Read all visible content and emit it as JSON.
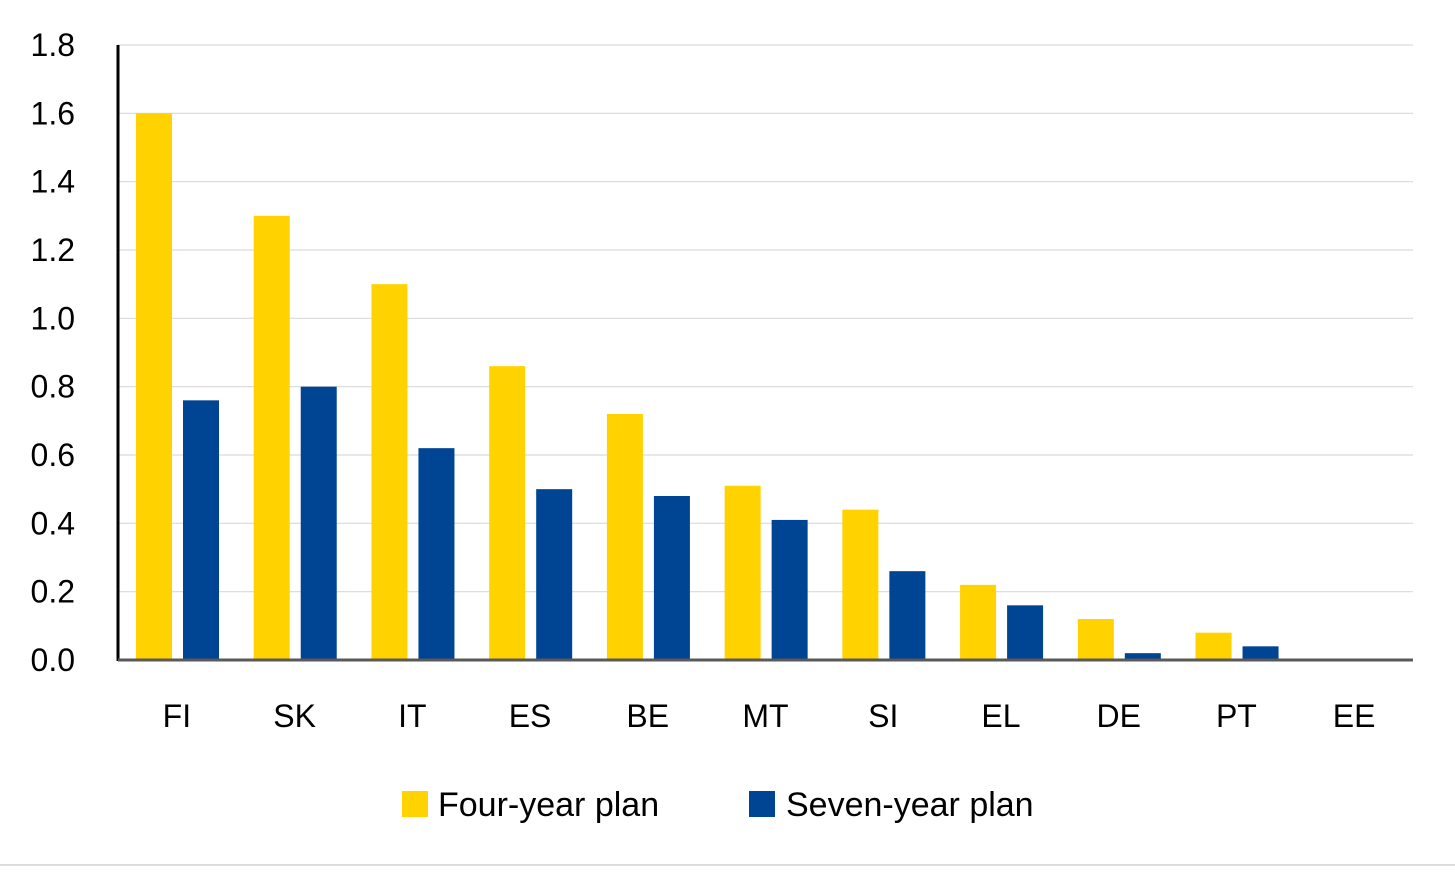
{
  "chart_data": {
    "type": "bar",
    "categories": [
      "FI",
      "SK",
      "IT",
      "ES",
      "BE",
      "MT",
      "SI",
      "EL",
      "DE",
      "PT",
      "EE"
    ],
    "series": [
      {
        "name": "Four-year plan",
        "color": "#FFD200",
        "values": [
          1.6,
          1.3,
          1.1,
          0.86,
          0.72,
          0.51,
          0.44,
          0.22,
          0.12,
          0.08,
          0.0
        ]
      },
      {
        "name": "Seven-year plan",
        "color": "#004494",
        "values": [
          0.76,
          0.8,
          0.62,
          0.5,
          0.48,
          0.41,
          0.26,
          0.16,
          0.02,
          0.04,
          0.0
        ]
      }
    ],
    "title": "",
    "xlabel": "",
    "ylabel": "",
    "ylim": [
      0,
      1.8
    ],
    "yticks": [
      "0.0",
      "0.2",
      "0.4",
      "0.6",
      "0.8",
      "1.0",
      "1.2",
      "1.4",
      "1.6",
      "1.8"
    ],
    "grid": true,
    "legend_position": "bottom"
  }
}
